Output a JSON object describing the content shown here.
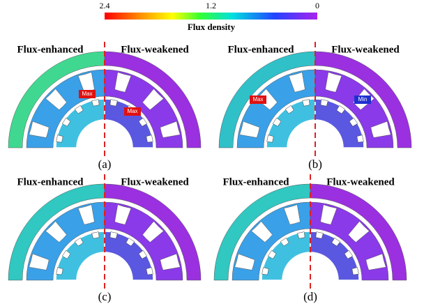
{
  "colorbar": {
    "title": "Flux density",
    "ticks": [
      2.4,
      1.2,
      0
    ]
  },
  "panels": [
    {
      "label": "(a)",
      "left": "Flux-enhanced",
      "right": "Flux-weakened",
      "annotations": [
        "Max",
        "Max"
      ]
    },
    {
      "label": "(b)",
      "left": "Flux-enhanced",
      "right": "Flux-weakened",
      "annotations": [
        "Max",
        "Min"
      ]
    },
    {
      "label": "(c)",
      "left": "Flux-enhanced",
      "right": "Flux-weakened",
      "annotations": []
    },
    {
      "label": "(d)",
      "left": "Flux-enhanced",
      "right": "Flux-weakened",
      "annotations": []
    }
  ]
}
